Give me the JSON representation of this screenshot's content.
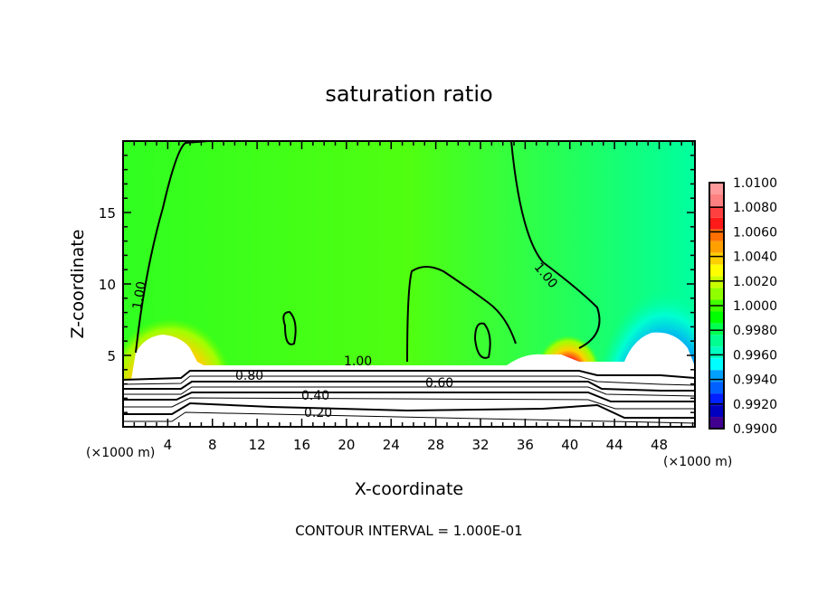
{
  "chart_data": {
    "type": "heatmap",
    "title": "saturation ratio",
    "xlabel": "X-coordinate",
    "ylabel": "Z-coordinate",
    "x_unit": "(×1000 m)",
    "y_unit": "(×1000 m)",
    "xlim": [
      0,
      51.2
    ],
    "ylim": [
      0,
      20
    ],
    "xticks": [
      4,
      8,
      12,
      16,
      20,
      24,
      28,
      32,
      36,
      40,
      44,
      48
    ],
    "yticks": [
      5,
      10,
      15
    ],
    "colorbar": {
      "min": 0.99,
      "max": 1.01,
      "labels": [
        "1.0100",
        "1.0080",
        "1.0060",
        "1.0040",
        "1.0020",
        "1.0000",
        "0.9980",
        "0.9960",
        "0.9940",
        "0.9920",
        "0.9900"
      ],
      "colors": [
        "#ff9a9a",
        "#ff8080",
        "#ff4040",
        "#ff1a1a",
        "#ff7000",
        "#ffa000",
        "#ffd000",
        "#ffff00",
        "#c8ff00",
        "#90ff00",
        "#40ff00",
        "#00ff00",
        "#00ff50",
        "#00ff90",
        "#00ffc0",
        "#00ffff",
        "#00a0ff",
        "#0060ff",
        "#0020ff",
        "#0000c0",
        "#400090"
      ]
    },
    "contour_labels": [
      "1.00",
      "1.00",
      "1.00",
      "0.80",
      "0.60",
      "0.40",
      "0.20"
    ],
    "footer": "CONTOUR INTERVAL = 1.000E-01"
  }
}
